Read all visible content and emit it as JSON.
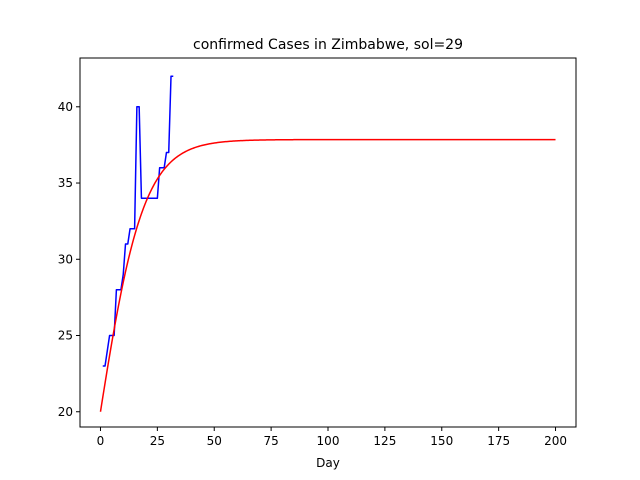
{
  "chart_data": {
    "type": "line",
    "title": "confirmed Cases in Zimbabwe, sol=29",
    "xlabel": "Day",
    "ylabel": "",
    "xlim": [
      -9,
      209
    ],
    "ylim": [
      19,
      43.2
    ],
    "xticks": [
      0,
      25,
      50,
      75,
      100,
      125,
      150,
      175,
      200
    ],
    "yticks": [
      20,
      25,
      30,
      35,
      40
    ],
    "grid": false,
    "legend": "none",
    "series": [
      {
        "color": "#0000ff",
        "x": [
          1,
          2,
          3,
          4,
          5,
          6,
          7,
          8,
          9,
          10,
          11,
          12,
          13,
          14,
          15,
          16,
          17,
          18,
          19,
          20,
          21,
          22,
          23,
          24,
          25,
          26,
          27,
          28,
          29,
          30,
          31,
          32
        ],
        "y": [
          23,
          23,
          24,
          25,
          25,
          25,
          28,
          28,
          28,
          29,
          31,
          31,
          32,
          32,
          32,
          40,
          40,
          34,
          34,
          34,
          34,
          34,
          34,
          34,
          34,
          36,
          36,
          36,
          37,
          37,
          42,
          42
        ]
      },
      {
        "color": "#ff0000",
        "model": "logistic",
        "params": {
          "K": 37.85,
          "r": 0.1,
          "y0": 20
        },
        "x_start": 0,
        "x_end": 200
      }
    ]
  }
}
